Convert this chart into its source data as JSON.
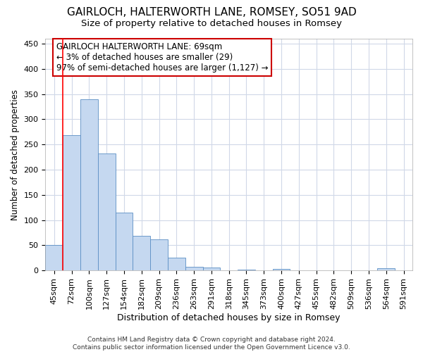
{
  "title_line1": "GAIRLOCH, HALTERWORTH LANE, ROMSEY, SO51 9AD",
  "title_line2": "Size of property relative to detached houses in Romsey",
  "xlabel": "Distribution of detached houses by size in Romsey",
  "ylabel": "Number of detached properties",
  "categories": [
    "45sqm",
    "72sqm",
    "100sqm",
    "127sqm",
    "154sqm",
    "182sqm",
    "209sqm",
    "236sqm",
    "263sqm",
    "291sqm",
    "318sqm",
    "345sqm",
    "373sqm",
    "400sqm",
    "427sqm",
    "455sqm",
    "482sqm",
    "509sqm",
    "536sqm",
    "564sqm",
    "591sqm"
  ],
  "values": [
    50,
    268,
    340,
    232,
    115,
    68,
    62,
    25,
    7,
    6,
    0,
    2,
    0,
    3,
    0,
    0,
    0,
    0,
    0,
    5,
    0
  ],
  "bar_color": "#c5d8f0",
  "bar_edge_color": "#5b8ec4",
  "redline_x": 0.5,
  "annotation_title": "GAIRLOCH HALTERWORTH LANE: 69sqm",
  "annotation_line2": "← 3% of detached houses are smaller (29)",
  "annotation_line3": "97% of semi-detached houses are larger (1,127) →",
  "annotation_box_color": "#ffffff",
  "annotation_box_edge": "#cc0000",
  "footer_line1": "Contains HM Land Registry data © Crown copyright and database right 2024.",
  "footer_line2": "Contains public sector information licensed under the Open Government Licence v3.0.",
  "ylim": [
    0,
    460
  ],
  "yticks": [
    0,
    50,
    100,
    150,
    200,
    250,
    300,
    350,
    400,
    450
  ],
  "background_color": "#ffffff",
  "plot_background": "#ffffff",
  "grid_color": "#d0d8e8",
  "title_fontsize": 11,
  "subtitle_fontsize": 9.5,
  "xlabel_fontsize": 9,
  "ylabel_fontsize": 8.5,
  "tick_fontsize": 8,
  "footer_fontsize": 6.5,
  "annotation_fontsize": 8.5
}
